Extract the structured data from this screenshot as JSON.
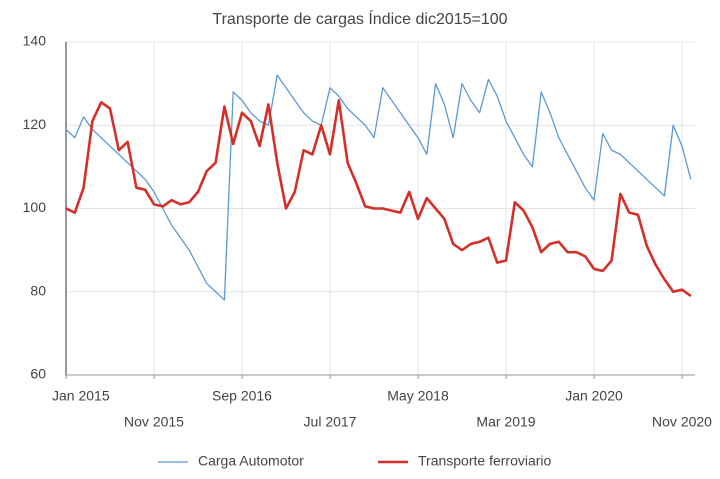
{
  "chart_data": {
    "type": "line",
    "title": "Transporte de cargas Índice dic2015=100",
    "categories": [
      "Jan 2015",
      null,
      null,
      null,
      null,
      null,
      null,
      null,
      null,
      null,
      "Nov 2015",
      null,
      null,
      null,
      null,
      null,
      null,
      null,
      null,
      null,
      "Sep 2016",
      null,
      null,
      null,
      null,
      null,
      null,
      null,
      null,
      null,
      "Jul 2017",
      null,
      null,
      null,
      null,
      null,
      null,
      null,
      null,
      null,
      "May 2018",
      null,
      null,
      null,
      null,
      null,
      null,
      null,
      null,
      null,
      "Mar 2019",
      null,
      null,
      null,
      null,
      null,
      null,
      null,
      null,
      null,
      "Jan 2020",
      null,
      null,
      null,
      null,
      null,
      null,
      null,
      null,
      null,
      "Nov 2020",
      null
    ],
    "series": [
      {
        "name": "Carga Automotor",
        "color": "#5b9bd5",
        "width": 1.3,
        "values": [
          119,
          117,
          122,
          119,
          117,
          115,
          113,
          111,
          109,
          107,
          104,
          100,
          96,
          93,
          90,
          86,
          82,
          80,
          78,
          128,
          126,
          123,
          121,
          120,
          132,
          129,
          126,
          123,
          121,
          120,
          129,
          127,
          124,
          122,
          120,
          117,
          129,
          126,
          123,
          120,
          117,
          113,
          130,
          125,
          117,
          130,
          126,
          123,
          131,
          127,
          121,
          117,
          113,
          110,
          128,
          123,
          117,
          113,
          109,
          105,
          102,
          118,
          114,
          113,
          111,
          109,
          107,
          105,
          103,
          120,
          115,
          107
        ]
      },
      {
        "name": "Transporte ferroviario",
        "color": "#d3302a",
        "width": 2.6,
        "values": [
          100,
          99,
          105,
          121,
          125.5,
          124,
          114,
          116,
          105,
          104.5,
          101,
          100.5,
          102,
          101,
          101.5,
          104,
          109,
          111,
          124.5,
          115.5,
          123,
          121,
          115,
          125,
          111,
          100,
          104,
          114,
          113,
          120,
          113,
          126,
          111,
          106,
          100.5,
          100,
          100,
          99.5,
          99,
          104,
          97.5,
          102.5,
          100,
          97.5,
          91.5,
          90,
          91.5,
          92,
          93,
          87,
          87.5,
          101.5,
          99.5,
          95.5,
          89.5,
          91.5,
          92,
          89.5,
          89.5,
          88.5,
          85.5,
          85,
          87.5,
          103.5,
          99,
          98.5,
          91,
          86.5,
          83,
          80,
          80.5,
          79
        ]
      }
    ],
    "ylim": [
      60,
      140
    ],
    "yticks": [
      60,
      80,
      100,
      120,
      140
    ],
    "grid": true
  }
}
